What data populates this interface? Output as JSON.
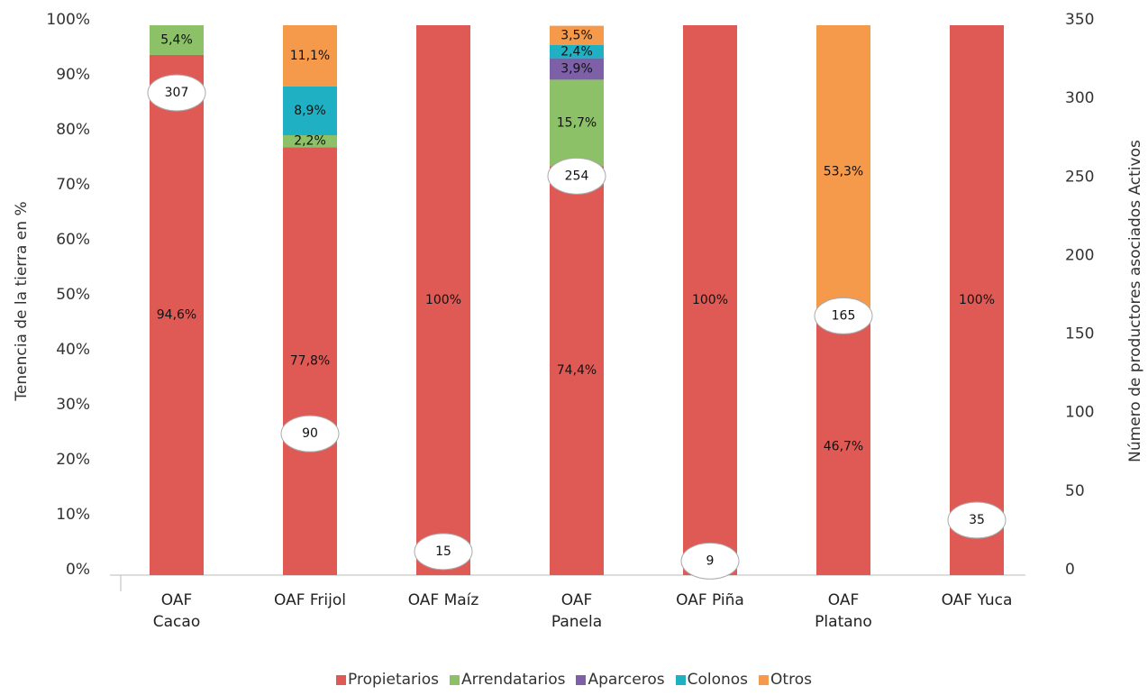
{
  "chart_data": {
    "type": "stacked_bar",
    "ylabel": "Tenencia de la tierra en %",
    "y2label": "Número de productores asociados Activos",
    "categories": [
      "OAF Cacao",
      "OAF Frijol",
      "OAF Maíz",
      "OAF Panela",
      "OAF Piña",
      "OAF Platano",
      "OAF Yuca"
    ],
    "series": [
      {
        "name": "Propietarios",
        "color": "#e05a55",
        "values": [
          94.6,
          77.8,
          100,
          74.4,
          100,
          46.7,
          100
        ],
        "value_labels": [
          "94,6%",
          "77,8%",
          "100%",
          "74,4%",
          "100%",
          "46,7%",
          "100%"
        ]
      },
      {
        "name": "Arrendatarios",
        "color": "#8cc168",
        "values": [
          5.4,
          2.2,
          0,
          15.7,
          0,
          0,
          0
        ],
        "value_labels": [
          "5,4%",
          "2,2%",
          null,
          "15,7%",
          null,
          null,
          null
        ]
      },
      {
        "name": "Aparceros",
        "color": "#7d60a8",
        "values": [
          0,
          0,
          0,
          3.9,
          0,
          0,
          0
        ],
        "value_labels": [
          null,
          null,
          null,
          "3,9%",
          null,
          null,
          null
        ]
      },
      {
        "name": "Colonos",
        "color": "#1fb0c4",
        "values": [
          0,
          8.9,
          0,
          2.4,
          0,
          0,
          0
        ],
        "value_labels": [
          null,
          "8,9%",
          null,
          "2,4%",
          null,
          null,
          null
        ]
      },
      {
        "name": "Otros",
        "color": "#f5994a",
        "values": [
          0,
          11.1,
          0,
          3.5,
          0,
          53.3,
          0
        ],
        "value_labels": [
          null,
          "11,1%",
          null,
          "3,5%",
          null,
          "53,3%",
          null
        ]
      },
      {
        "axis": "y2",
        "values": [
          307,
          90,
          15,
          254,
          9,
          165,
          35
        ]
      }
    ],
    "ylim": [
      0,
      100
    ],
    "yticks": [
      {
        "value": 0,
        "label": "0%"
      },
      {
        "value": 10,
        "label": "10%"
      },
      {
        "value": 20,
        "label": "20%"
      },
      {
        "value": 30,
        "label": "30%"
      },
      {
        "value": 40,
        "label": "40%"
      },
      {
        "value": 50,
        "label": "50%"
      },
      {
        "value": 60,
        "label": "60%"
      },
      {
        "value": 70,
        "label": "70%"
      },
      {
        "value": 80,
        "label": "80%"
      },
      {
        "value": 90,
        "label": "90%"
      },
      {
        "value": 100,
        "label": "100%"
      }
    ],
    "y2lim": [
      0,
      350
    ],
    "y2ticks": [
      0,
      50,
      100,
      150,
      200,
      250,
      300,
      350
    ],
    "legend": "bottom"
  }
}
